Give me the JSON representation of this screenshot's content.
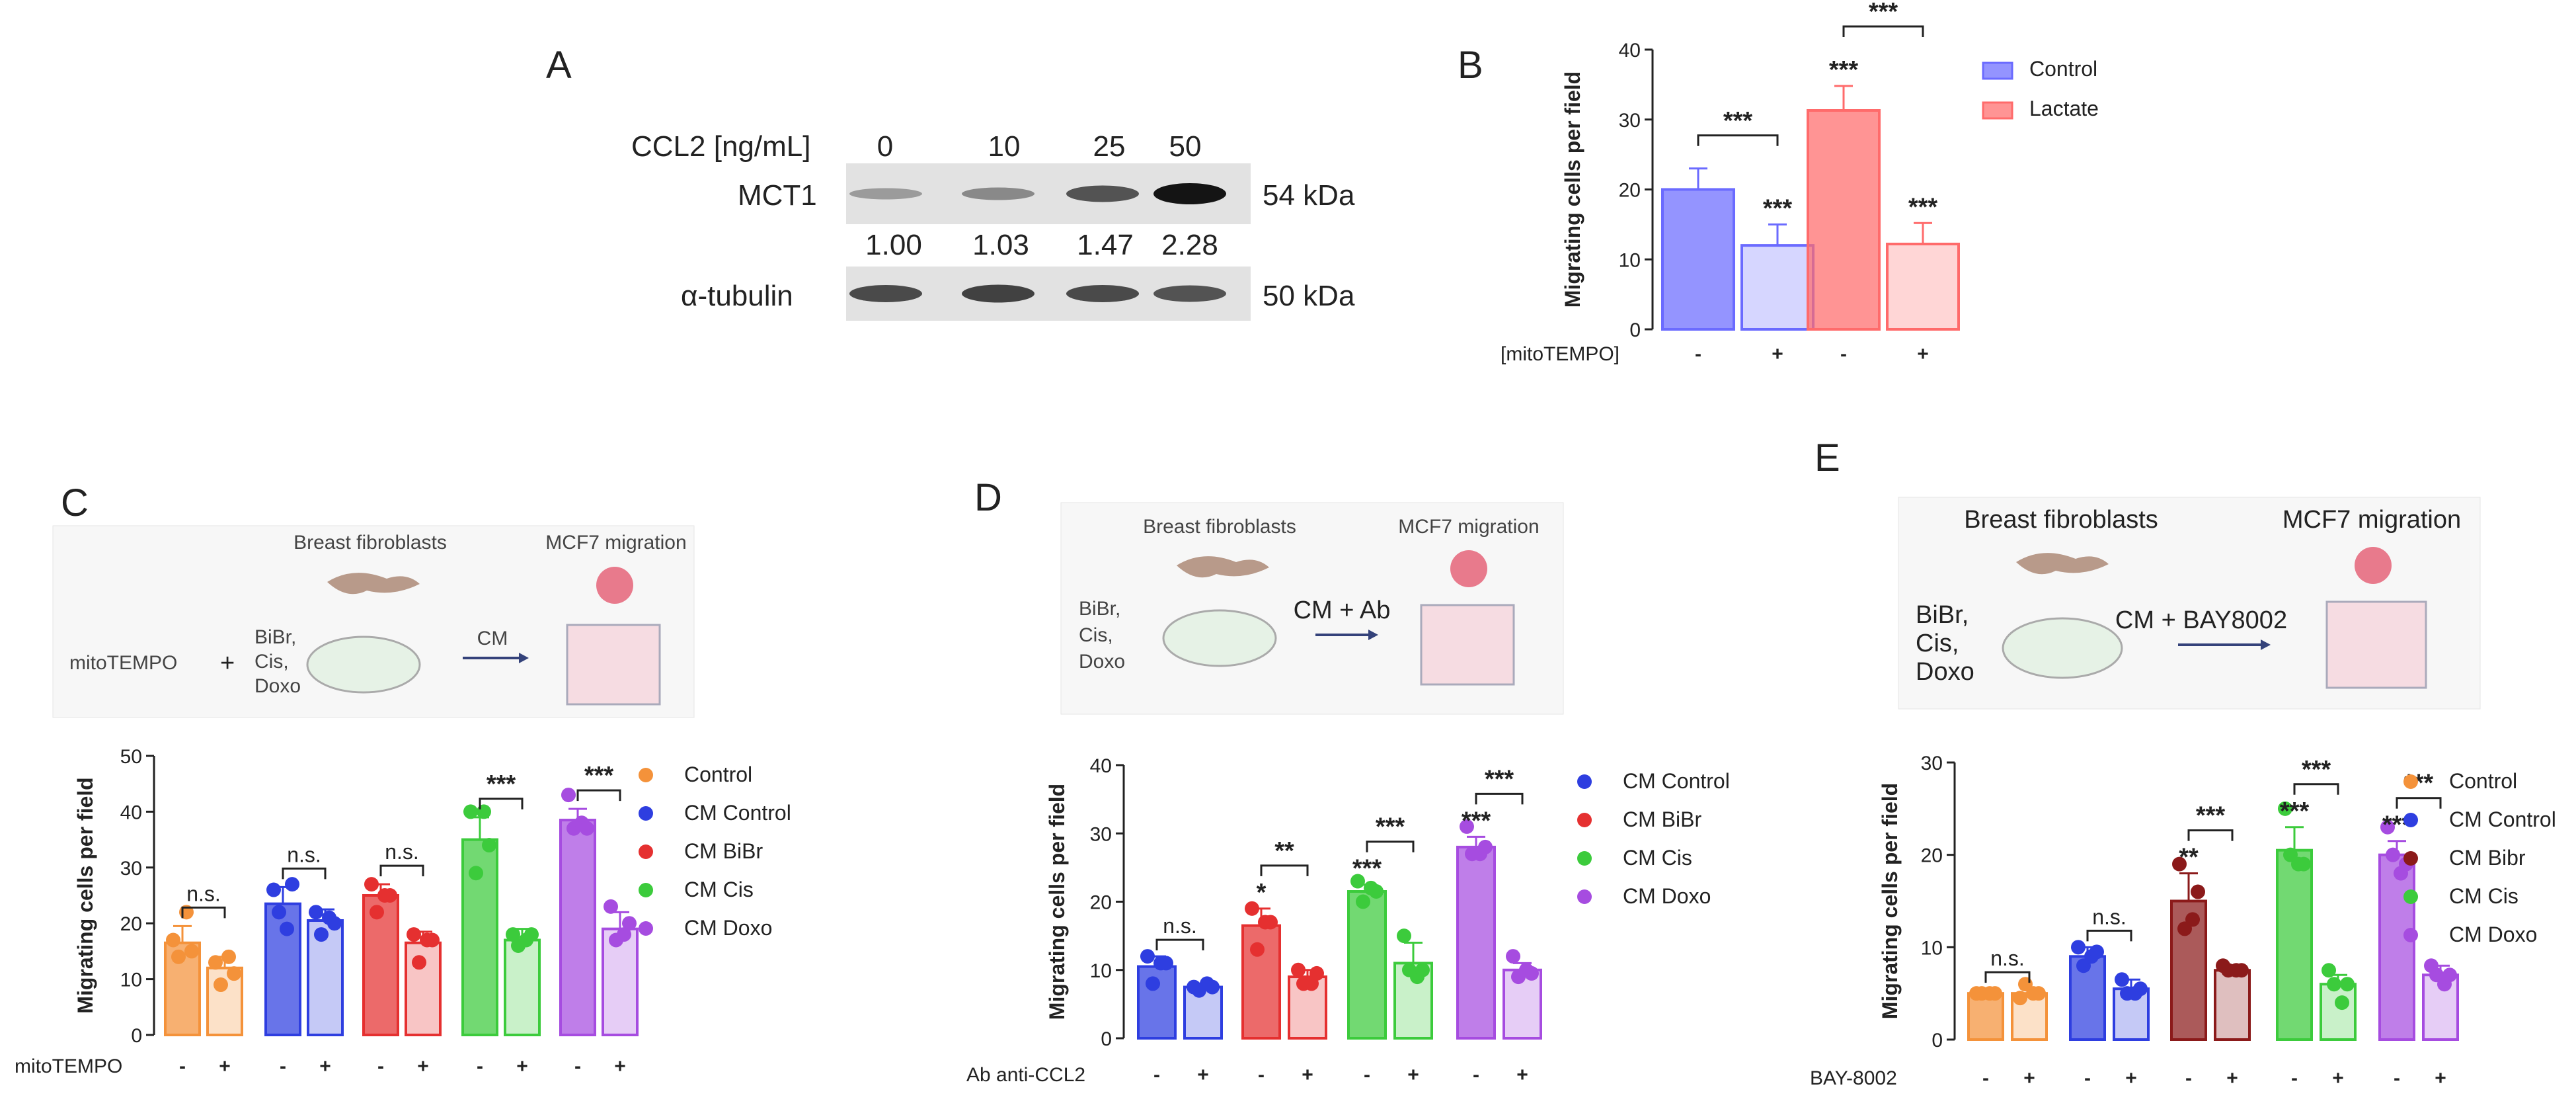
{
  "panel_letters": [
    "A",
    "B",
    "C",
    "D",
    "E"
  ],
  "western_blot": {
    "treatment_label": "CCL2 [ng/mL]",
    "doses": [
      "0",
      "10",
      "25",
      "50"
    ],
    "rows": [
      {
        "protein": "MCT1",
        "size": "54 kDa",
        "band_intensity": [
          0.25,
          0.35,
          0.65,
          1.0
        ]
      },
      {
        "protein": "α-tubulin",
        "size": "50 kDa",
        "band_intensity": [
          0.7,
          0.75,
          0.7,
          0.65
        ]
      }
    ],
    "quantification": [
      "1.00",
      "1.03",
      "1.47",
      "2.28"
    ]
  },
  "schematics": {
    "fibroblasts_label": "Breast fibroblasts",
    "migration_label": "MCF7 migration",
    "c": {
      "pre": "mitoTEMPO",
      "plus": "+",
      "drugs": [
        "BiBr,",
        "Cis,",
        "Doxo"
      ],
      "arrow": "CM"
    },
    "d": {
      "drugs": [
        "BiBr,",
        "Cis,",
        "Doxo"
      ],
      "arrow": "CM + Ab"
    },
    "e": {
      "drugs": [
        "BiBr,",
        "Cis,",
        "Doxo"
      ],
      "arrow": "CM + BAY8002"
    }
  },
  "chart_data": [
    {
      "id": "B",
      "type": "bar",
      "ylabel": "Migrating cells per field",
      "ylim": [
        0,
        40
      ],
      "yticks": [
        "0",
        "10",
        "20",
        "30",
        "40"
      ],
      "treatment_label": "[mitoTEMPO]",
      "groups": [
        {
          "name": "Control",
          "color": "#6b6bff",
          "values": [
            20,
            12
          ],
          "errors": [
            3,
            3
          ],
          "sig": [
            "",
            "***"
          ],
          "bracket": "***"
        },
        {
          "name": "Lactate",
          "color": "#ff6b6b",
          "values": [
            31.3,
            12.2
          ],
          "errors": [
            3.5,
            3
          ],
          "sig": [
            "***",
            "***"
          ],
          "bracket": "***"
        }
      ],
      "signs": [
        "-",
        "+"
      ]
    },
    {
      "id": "C",
      "type": "bar",
      "ylabel": "Migrating cells per field",
      "ylim": [
        0,
        50
      ],
      "yticks": [
        "0",
        "10",
        "20",
        "30",
        "40",
        "50"
      ],
      "treatment_label": "mitoTEMPO",
      "groups": [
        {
          "name": "Control",
          "color": "#f4923a",
          "values": [
            16.5,
            12
          ],
          "errors": [
            3,
            2
          ],
          "points": [
            [
              17,
              14,
              22,
              15
            ],
            [
              13,
              9,
              14,
              11
            ]
          ],
          "sig": [
            "",
            ""
          ],
          "bracket": "n.s."
        },
        {
          "name": "CM Control",
          "color": "#2e3ee0",
          "values": [
            23.5,
            20.5
          ],
          "errors": [
            3,
            2
          ],
          "points": [
            [
              26,
              22,
              19,
              27
            ],
            [
              22,
              18,
              21,
              20
            ]
          ],
          "sig": [
            "",
            ""
          ],
          "bracket": "n.s."
        },
        {
          "name": "CM BiBr",
          "color": "#e53030",
          "values": [
            25,
            16.5
          ],
          "errors": [
            2,
            2
          ],
          "points": [
            [
              27,
              22,
              25,
              25
            ],
            [
              18,
              13,
              17,
              17
            ]
          ],
          "sig": [
            "",
            ""
          ],
          "bracket": "n.s."
        },
        {
          "name": "CM Cis",
          "color": "#3ccb3c",
          "values": [
            35,
            17
          ],
          "errors": [
            4,
            2
          ],
          "points": [
            [
              40,
              29,
              40,
              34
            ],
            [
              18,
              16,
              17,
              18
            ]
          ],
          "sig": [
            "",
            ""
          ],
          "bracket": "***"
        },
        {
          "name": "CM Doxo",
          "color": "#a64ce0",
          "values": [
            38.5,
            19
          ],
          "errors": [
            2,
            3
          ],
          "points": [
            [
              43,
              37,
              38,
              37
            ],
            [
              23,
              17,
              18,
              20
            ]
          ],
          "sig": [
            "",
            ""
          ],
          "bracket": "***"
        }
      ],
      "signs": [
        "-",
        "+"
      ]
    },
    {
      "id": "D",
      "type": "bar",
      "ylabel": "Migrating cells per field",
      "ylim": [
        0,
        40
      ],
      "yticks": [
        "0",
        "10",
        "20",
        "30",
        "40"
      ],
      "treatment_label": "Ab anti-CCL2",
      "groups": [
        {
          "name": "CM Control",
          "color": "#2e3ee0",
          "values": [
            10.5,
            7.5
          ],
          "errors": [
            1.5,
            0.5
          ],
          "points": [
            [
              12,
              8,
              11,
              11
            ],
            [
              7.5,
              7,
              8,
              7.5
            ]
          ],
          "sig": [
            "",
            ""
          ],
          "bracket": "n.s."
        },
        {
          "name": "CM BiBr",
          "color": "#e53030",
          "values": [
            16.5,
            9
          ],
          "errors": [
            2.5,
            1
          ],
          "points": [
            [
              19,
              13,
              17,
              17
            ],
            [
              10,
              8,
              8,
              9.5
            ]
          ],
          "sig": [
            "*",
            ""
          ],
          "bracket": "**"
        },
        {
          "name": "CM Cis",
          "color": "#3ccb3c",
          "values": [
            21.5,
            11
          ],
          "errors": [
            1,
            3
          ],
          "points": [
            [
              23,
              20,
              22,
              21.5
            ],
            [
              15,
              10,
              9,
              10
            ]
          ],
          "sig": [
            "***",
            ""
          ],
          "bracket": "***"
        },
        {
          "name": "CM Doxo",
          "color": "#a64ce0",
          "values": [
            28,
            10
          ],
          "errors": [
            1.5,
            1
          ],
          "points": [
            [
              31,
              27,
              27,
              28
            ],
            [
              12,
              9,
              10,
              9.5
            ]
          ],
          "sig": [
            "***",
            ""
          ],
          "bracket": "***"
        }
      ],
      "signs": [
        "-",
        "+"
      ]
    },
    {
      "id": "E",
      "type": "bar",
      "ylabel": "Migrating cells per field",
      "ylim": [
        0,
        30
      ],
      "yticks": [
        "0",
        "10",
        "20",
        "30"
      ],
      "treatment_label": "BAY-8002",
      "groups": [
        {
          "name": "Control",
          "color": "#f4923a",
          "values": [
            5,
            5
          ],
          "errors": [
            0.5,
            0.5
          ],
          "points": [
            [
              5,
              5,
              5,
              5
            ],
            [
              4.5,
              6,
              5,
              5
            ]
          ],
          "sig": [
            "",
            ""
          ],
          "bracket": "n.s."
        },
        {
          "name": "CM Control",
          "color": "#2e3ee0",
          "values": [
            9,
            5.5
          ],
          "errors": [
            1,
            1
          ],
          "points": [
            [
              10,
              8,
              9,
              9.5
            ],
            [
              6.5,
              5,
              5,
              5.5
            ]
          ],
          "sig": [
            "",
            ""
          ],
          "bracket": "n.s."
        },
        {
          "name": "CM Bibr",
          "color": "#8b1a1a",
          "values": [
            15,
            7.5
          ],
          "errors": [
            3,
            0.5
          ],
          "points": [
            [
              19,
              12,
              13,
              16
            ],
            [
              8,
              7.5,
              7.5,
              7.5
            ]
          ],
          "sig": [
            "**",
            ""
          ],
          "bracket": "***"
        },
        {
          "name": "CM Cis",
          "color": "#3ccb3c",
          "values": [
            20.5,
            6
          ],
          "errors": [
            2.5,
            1
          ],
          "points": [
            [
              25,
              20,
              19,
              19
            ],
            [
              7.5,
              6,
              4,
              6
            ]
          ],
          "sig": [
            "***",
            ""
          ],
          "bracket": "***"
        },
        {
          "name": "CM Doxo",
          "color": "#a64ce0",
          "values": [
            20,
            7
          ],
          "errors": [
            1.5,
            1
          ],
          "points": [
            [
              23,
              20,
              18,
              19
            ],
            [
              8,
              7,
              6,
              7
            ]
          ],
          "sig": [
            "***",
            ""
          ],
          "bracket": "***"
        }
      ],
      "signs": [
        "-",
        "+"
      ]
    }
  ]
}
